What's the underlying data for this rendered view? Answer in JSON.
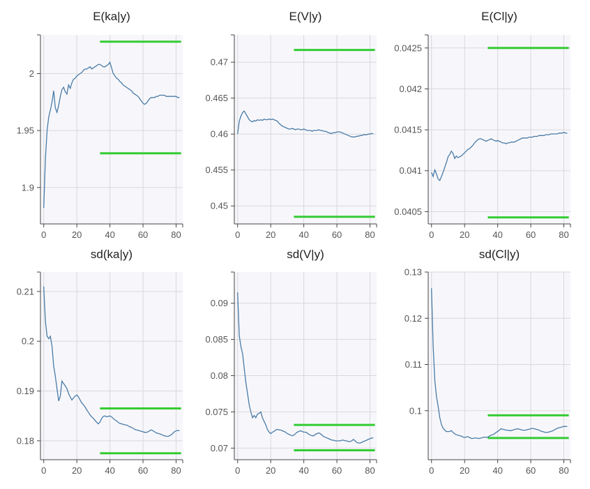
{
  "chart_data": [
    {
      "type": "line",
      "title": "E(ka|y)",
      "xlim": [
        -2,
        84
      ],
      "ylim": [
        1.868,
        2.034
      ],
      "xticks": [
        0,
        20,
        40,
        60,
        80
      ],
      "yticks": [
        1.9,
        1.95,
        2
      ],
      "ytick_labels": [
        "1.9",
        "1.95",
        "2"
      ],
      "bounds": {
        "x_start": 34,
        "x_end": 83,
        "upper": 2.028,
        "lower": 1.93
      },
      "x": [
        0,
        1,
        2,
        3,
        4,
        5,
        6,
        7,
        8,
        9,
        10,
        11,
        12,
        13,
        14,
        15,
        16,
        17,
        18,
        19,
        20,
        21,
        22,
        23,
        24,
        25,
        26,
        27,
        28,
        29,
        30,
        31,
        32,
        33,
        34,
        35,
        36,
        37,
        38,
        39,
        40,
        41,
        42,
        43,
        44,
        45,
        46,
        47,
        48,
        49,
        50,
        51,
        52,
        53,
        54,
        55,
        56,
        57,
        58,
        59,
        60,
        61,
        62,
        63,
        64,
        65,
        66,
        67,
        68,
        69,
        70,
        71,
        72,
        73,
        74,
        75,
        76,
        77,
        78,
        79,
        80,
        81,
        82
      ],
      "y": [
        1.882,
        1.925,
        1.95,
        1.962,
        1.968,
        1.975,
        1.985,
        1.97,
        1.966,
        1.972,
        1.98,
        1.986,
        1.988,
        1.984,
        1.982,
        1.99,
        1.987,
        1.992,
        1.995,
        1.996,
        1.998,
        1.999,
        2.0,
        2.001,
        2.003,
        2.004,
        2.004,
        2.005,
        2.006,
        2.004,
        2.005,
        2.006,
        2.007,
        2.008,
        2.008,
        2.007,
        2.006,
        2.006,
        2.007,
        2.008,
        2.01,
        2.005,
        2.0,
        1.998,
        1.996,
        1.995,
        1.993,
        1.992,
        1.99,
        1.989,
        1.988,
        1.987,
        1.986,
        1.985,
        1.983,
        1.982,
        1.981,
        1.98,
        1.978,
        1.976,
        1.974,
        1.973,
        1.974,
        1.976,
        1.978,
        1.979,
        1.979,
        1.979,
        1.98,
        1.98,
        1.981,
        1.981,
        1.981,
        1.981,
        1.98,
        1.98,
        1.98,
        1.98,
        1.98,
        1.98,
        1.98,
        1.979,
        1.979
      ]
    },
    {
      "type": "line",
      "title": "E(V|y)",
      "xlim": [
        -2,
        84
      ],
      "ylim": [
        0.4475,
        0.4738
      ],
      "xticks": [
        0,
        20,
        40,
        60,
        80
      ],
      "yticks": [
        0.45,
        0.455,
        0.46,
        0.465,
        0.47
      ],
      "ytick_labels": [
        "0.45",
        "0.455",
        "0.46",
        "0.465",
        "0.47"
      ],
      "bounds": {
        "x_start": 34,
        "x_end": 83,
        "upper": 0.4717,
        "lower": 0.4485
      },
      "x": [
        0,
        1,
        2,
        3,
        4,
        5,
        6,
        7,
        8,
        9,
        10,
        11,
        12,
        13,
        14,
        15,
        16,
        17,
        18,
        19,
        20,
        21,
        22,
        23,
        24,
        25,
        26,
        27,
        28,
        29,
        30,
        31,
        32,
        33,
        34,
        35,
        36,
        37,
        38,
        39,
        40,
        41,
        42,
        43,
        44,
        45,
        46,
        47,
        48,
        49,
        50,
        51,
        52,
        53,
        54,
        55,
        56,
        57,
        58,
        59,
        60,
        61,
        62,
        63,
        64,
        65,
        66,
        67,
        68,
        69,
        70,
        71,
        72,
        73,
        74,
        75,
        76,
        77,
        78,
        79,
        80,
        81,
        82
      ],
      "y": [
        0.46,
        0.4618,
        0.4625,
        0.463,
        0.4632,
        0.4628,
        0.4624,
        0.462,
        0.4618,
        0.4617,
        0.4619,
        0.4618,
        0.462,
        0.4619,
        0.462,
        0.4619,
        0.4621,
        0.462,
        0.462,
        0.4621,
        0.462,
        0.4621,
        0.462,
        0.4619,
        0.4618,
        0.4615,
        0.4613,
        0.4611,
        0.461,
        0.4609,
        0.4608,
        0.4607,
        0.4607,
        0.4608,
        0.4607,
        0.4606,
        0.4607,
        0.4607,
        0.4606,
        0.4606,
        0.4607,
        0.4606,
        0.4605,
        0.4605,
        0.4605,
        0.4604,
        0.4605,
        0.4605,
        0.4605,
        0.4606,
        0.4605,
        0.4605,
        0.4604,
        0.4604,
        0.4603,
        0.4602,
        0.4601,
        0.4601,
        0.4602,
        0.4602,
        0.4603,
        0.4603,
        0.4603,
        0.4602,
        0.4601,
        0.46,
        0.4599,
        0.4598,
        0.4597,
        0.4596,
        0.4596,
        0.4596,
        0.4597,
        0.4597,
        0.4598,
        0.4598,
        0.4599,
        0.4599,
        0.4599,
        0.46,
        0.46,
        0.4601,
        0.46
      ]
    },
    {
      "type": "line",
      "title": "E(Cl|y)",
      "xlim": [
        -2,
        84
      ],
      "ylim": [
        0.04035,
        0.04266
      ],
      "xticks": [
        0,
        20,
        40,
        60,
        80
      ],
      "yticks": [
        0.0405,
        0.041,
        0.0415,
        0.042,
        0.0425
      ],
      "ytick_labels": [
        "0.0405",
        "0.041",
        "0.0415",
        "0.042",
        "0.0425"
      ],
      "bounds": {
        "x_start": 34,
        "x_end": 83,
        "upper": 0.0425,
        "lower": 0.04043
      },
      "x": [
        0,
        1,
        2,
        3,
        4,
        5,
        6,
        7,
        8,
        9,
        10,
        11,
        12,
        13,
        14,
        15,
        16,
        17,
        18,
        19,
        20,
        21,
        22,
        23,
        24,
        25,
        26,
        27,
        28,
        29,
        30,
        31,
        32,
        33,
        34,
        35,
        36,
        37,
        38,
        39,
        40,
        41,
        42,
        43,
        44,
        45,
        46,
        47,
        48,
        49,
        50,
        51,
        52,
        53,
        54,
        55,
        56,
        57,
        58,
        59,
        60,
        61,
        62,
        63,
        64,
        65,
        66,
        67,
        68,
        69,
        70,
        71,
        72,
        73,
        74,
        75,
        76,
        77,
        78,
        79,
        80,
        81,
        82
      ],
      "y": [
        0.04098,
        0.04093,
        0.04101,
        0.04096,
        0.0409,
        0.04088,
        0.04093,
        0.04098,
        0.04104,
        0.0411,
        0.04117,
        0.0412,
        0.04124,
        0.04121,
        0.04115,
        0.04118,
        0.04116,
        0.04117,
        0.04118,
        0.0412,
        0.04122,
        0.04124,
        0.04126,
        0.04127,
        0.04129,
        0.04131,
        0.04134,
        0.04136,
        0.04138,
        0.04139,
        0.04139,
        0.04138,
        0.04137,
        0.04136,
        0.04137,
        0.04138,
        0.04139,
        0.04138,
        0.04137,
        0.04136,
        0.04137,
        0.04136,
        0.04135,
        0.04134,
        0.04134,
        0.04133,
        0.04134,
        0.04134,
        0.04135,
        0.04135,
        0.04135,
        0.04136,
        0.04137,
        0.04138,
        0.04139,
        0.0414,
        0.0414,
        0.0414,
        0.0414,
        0.04141,
        0.04141,
        0.04141,
        0.04142,
        0.04142,
        0.04142,
        0.04143,
        0.04143,
        0.04143,
        0.04143,
        0.04144,
        0.04144,
        0.04144,
        0.04145,
        0.04145,
        0.04145,
        0.04145,
        0.04145,
        0.04146,
        0.04146,
        0.04146,
        0.04147,
        0.04146,
        0.04146
      ]
    },
    {
      "type": "line",
      "title": "sd(ka|y)",
      "xlim": [
        -2,
        84
      ],
      "ylim": [
        0.1762,
        0.2139
      ],
      "xticks": [
        0,
        20,
        40,
        60,
        80
      ],
      "yticks": [
        0.18,
        0.19,
        0.2,
        0.21
      ],
      "ytick_labels": [
        "0.18",
        "0.19",
        "0.2",
        "0.21"
      ],
      "bounds": {
        "x_start": 34,
        "x_end": 83,
        "upper": 0.1865,
        "lower": 0.1775
      },
      "x": [
        0,
        1,
        2,
        3,
        4,
        5,
        6,
        7,
        8,
        9,
        10,
        11,
        12,
        13,
        14,
        15,
        16,
        17,
        18,
        19,
        20,
        21,
        22,
        23,
        24,
        25,
        26,
        27,
        28,
        29,
        30,
        31,
        32,
        33,
        34,
        35,
        36,
        37,
        38,
        39,
        40,
        41,
        42,
        43,
        44,
        45,
        46,
        47,
        48,
        49,
        50,
        51,
        52,
        53,
        54,
        55,
        56,
        57,
        58,
        59,
        60,
        61,
        62,
        63,
        64,
        65,
        66,
        67,
        68,
        69,
        70,
        71,
        72,
        73,
        74,
        75,
        76,
        77,
        78,
        79,
        80,
        81,
        82
      ],
      "y": [
        0.211,
        0.204,
        0.201,
        0.2005,
        0.201,
        0.199,
        0.195,
        0.193,
        0.1905,
        0.188,
        0.189,
        0.192,
        0.1915,
        0.191,
        0.1905,
        0.1895,
        0.1888,
        0.1882,
        0.1886,
        0.189,
        0.1892,
        0.1888,
        0.1882,
        0.1876,
        0.1872,
        0.1868,
        0.1862,
        0.1857,
        0.1852,
        0.1848,
        0.1845,
        0.1841,
        0.1837,
        0.1834,
        0.1838,
        0.1845,
        0.1849,
        0.185,
        0.1848,
        0.1849,
        0.185,
        0.1848,
        0.1845,
        0.1842,
        0.184,
        0.1837,
        0.1835,
        0.1834,
        0.1833,
        0.1832,
        0.1832,
        0.183,
        0.1828,
        0.1827,
        0.1825,
        0.1823,
        0.1822,
        0.1821,
        0.182,
        0.1819,
        0.1818,
        0.1817,
        0.1817,
        0.1818,
        0.182,
        0.1822,
        0.182,
        0.1818,
        0.1816,
        0.1815,
        0.1814,
        0.1813,
        0.1811,
        0.181,
        0.1809,
        0.1809,
        0.181,
        0.1812,
        0.1815,
        0.1818,
        0.182,
        0.1821,
        0.182
      ]
    },
    {
      "type": "line",
      "title": "sd(V|y)",
      "xlim": [
        -2,
        84
      ],
      "ylim": [
        0.0684,
        0.0943
      ],
      "xticks": [
        0,
        20,
        40,
        60,
        80
      ],
      "yticks": [
        0.07,
        0.075,
        0.08,
        0.085,
        0.09
      ],
      "ytick_labels": [
        "0.07",
        "0.075",
        "0.08",
        "0.085",
        "0.09"
      ],
      "bounds": {
        "x_start": 34,
        "x_end": 83,
        "upper": 0.0732,
        "lower": 0.0697
      },
      "x": [
        0,
        1,
        2,
        3,
        4,
        5,
        6,
        7,
        8,
        9,
        10,
        11,
        12,
        13,
        14,
        15,
        16,
        17,
        18,
        19,
        20,
        21,
        22,
        23,
        24,
        25,
        26,
        27,
        28,
        29,
        30,
        31,
        32,
        33,
        34,
        35,
        36,
        37,
        38,
        39,
        40,
        41,
        42,
        43,
        44,
        45,
        46,
        47,
        48,
        49,
        50,
        51,
        52,
        53,
        54,
        55,
        56,
        57,
        58,
        59,
        60,
        61,
        62,
        63,
        64,
        65,
        66,
        67,
        68,
        69,
        70,
        71,
        72,
        73,
        74,
        75,
        76,
        77,
        78,
        79,
        80,
        81,
        82
      ],
      "y": [
        0.0915,
        0.0855,
        0.084,
        0.083,
        0.081,
        0.079,
        0.0775,
        0.076,
        0.075,
        0.0742,
        0.0745,
        0.0742,
        0.0747,
        0.0748,
        0.075,
        0.0742,
        0.0737,
        0.0732,
        0.0726,
        0.0722,
        0.072,
        0.0722,
        0.0723,
        0.0725,
        0.0726,
        0.0725,
        0.0725,
        0.0724,
        0.0723,
        0.0722,
        0.072,
        0.0719,
        0.0718,
        0.0717,
        0.0718,
        0.072,
        0.0722,
        0.0723,
        0.0724,
        0.0723,
        0.0722,
        0.0722,
        0.0721,
        0.0719,
        0.0718,
        0.0717,
        0.0717,
        0.0719,
        0.072,
        0.0721,
        0.072,
        0.0718,
        0.0716,
        0.0715,
        0.0714,
        0.0713,
        0.0712,
        0.0711,
        0.0711,
        0.071,
        0.071,
        0.071,
        0.071,
        0.0711,
        0.0711,
        0.071,
        0.071,
        0.0709,
        0.0709,
        0.071,
        0.0712,
        0.071,
        0.0708,
        0.0707,
        0.0707,
        0.0708,
        0.0709,
        0.071,
        0.0711,
        0.0712,
        0.0713,
        0.0714,
        0.0714
      ]
    },
    {
      "type": "line",
      "title": "sd(Cl|y)",
      "xlim": [
        -2,
        84
      ],
      "ylim": [
        0.0894,
        0.13
      ],
      "xticks": [
        0,
        20,
        40,
        60,
        80
      ],
      "yticks": [
        0.1,
        0.11,
        0.12,
        0.13
      ],
      "ytick_labels": [
        "0.1",
        "0.11",
        "0.12",
        "0.13"
      ],
      "bounds": {
        "x_start": 34,
        "x_end": 83,
        "upper": 0.099,
        "lower": 0.0941
      },
      "x": [
        0,
        1,
        2,
        3,
        4,
        5,
        6,
        7,
        8,
        9,
        10,
        11,
        12,
        13,
        14,
        15,
        16,
        17,
        18,
        19,
        20,
        21,
        22,
        23,
        24,
        25,
        26,
        27,
        28,
        29,
        30,
        31,
        32,
        33,
        34,
        35,
        36,
        37,
        38,
        39,
        40,
        41,
        42,
        43,
        44,
        45,
        46,
        47,
        48,
        49,
        50,
        51,
        52,
        53,
        54,
        55,
        56,
        57,
        58,
        59,
        60,
        61,
        62,
        63,
        64,
        65,
        66,
        67,
        68,
        69,
        70,
        71,
        72,
        73,
        74,
        75,
        76,
        77,
        78,
        79,
        80,
        81,
        82
      ],
      "y": [
        0.1265,
        0.114,
        0.1065,
        0.103,
        0.101,
        0.0985,
        0.097,
        0.0962,
        0.0958,
        0.0955,
        0.0955,
        0.0955,
        0.0957,
        0.0953,
        0.095,
        0.0948,
        0.0947,
        0.0946,
        0.0945,
        0.0943,
        0.0942,
        0.0943,
        0.0944,
        0.0942,
        0.094,
        0.094,
        0.0941,
        0.0941,
        0.094,
        0.094,
        0.0941,
        0.0942,
        0.0943,
        0.0942,
        0.0943,
        0.0945,
        0.0947,
        0.0948,
        0.095,
        0.0953,
        0.0955,
        0.0958,
        0.0961,
        0.096,
        0.0959,
        0.0958,
        0.0958,
        0.0957,
        0.0957,
        0.0958,
        0.0959,
        0.096,
        0.0961,
        0.096,
        0.0959,
        0.0958,
        0.0958,
        0.0958,
        0.0959,
        0.096,
        0.0961,
        0.0962,
        0.0961,
        0.096,
        0.0959,
        0.0958,
        0.0956,
        0.0955,
        0.0954,
        0.0953,
        0.0953,
        0.0954,
        0.0955,
        0.0956,
        0.0958,
        0.096,
        0.0962,
        0.0963,
        0.0964,
        0.0965,
        0.0966,
        0.0966,
        0.0966
      ]
    }
  ]
}
